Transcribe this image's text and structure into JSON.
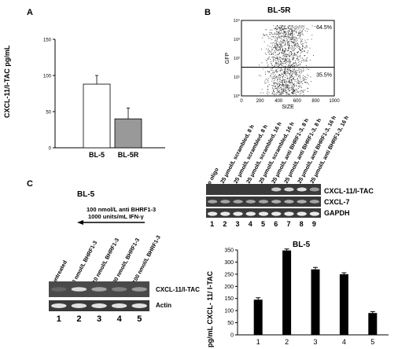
{
  "panels": {
    "A": {
      "letter": "A",
      "ylabel": "CXCL-11/I-TAC pg/mL",
      "chart_data": {
        "type": "bar",
        "categories": [
          "BL-5",
          "BL-5R"
        ],
        "values": [
          88,
          40
        ],
        "errors": [
          12,
          15
        ],
        "ylim": [
          0,
          150
        ],
        "yticks": [
          "0",
          "50",
          "100",
          "150"
        ],
        "colors": [
          "#ffffff",
          "#999999"
        ]
      }
    },
    "B": {
      "letter": "B",
      "title": "BL-5R",
      "chart_data": {
        "type": "scatter",
        "xlabel": "SIZE",
        "ylabel": "GFP",
        "xticks": [
          "0",
          "200",
          "400",
          "600",
          "800",
          "1000"
        ],
        "yticks": [
          "10⁰",
          "10¹",
          "10²",
          "10³",
          "10⁴"
        ],
        "gate_upper": "64.5%",
        "gate_lower": "35.5%"
      },
      "lane_labels": [
        "no oligo",
        "0.25 μmol/L scrambled, 8 h",
        "1.25 μmol/L scrambled, 8 h",
        "0.25 μmol/L scrambled, 16 h",
        "1.25 μmol/L scrambled, 16 h",
        "0.25 μmol/L anti BHRF1-3, 8 h",
        "1.25 μmol/L anti BHRF1-3, 8 h",
        "0.25 μmol/L anti BHRF1-3, 16 h",
        "1.25 μmol/L anti BHRF1-3, 16 h"
      ],
      "bands": [
        "CXCL-11/I-TAC",
        "CXCL-7",
        "GAPDH"
      ],
      "lane_numbers": [
        "1",
        "2",
        "3",
        "4",
        "5",
        "6",
        "7",
        "8",
        "9"
      ]
    },
    "C": {
      "letter": "C",
      "title": "BL-5",
      "treatment_line1": "100  nmol/L anti BHRF1-3",
      "treatment_line2": "1000  units/mL  IFN-γ",
      "lane_labels": [
        "untreated",
        "0 nmol/L BHRF1-3",
        "10 nmol/L BHRF1-3",
        "30 nmol/L BHRF1-3",
        "100 nmol/L BHRF1-3"
      ],
      "bands": [
        "CXCL-11/I-TAC",
        "Actin"
      ],
      "lane_numbers": [
        "1",
        "2",
        "3",
        "4",
        "5"
      ]
    },
    "D": {
      "title": "BL-5",
      "ylabel": "pg/mL CXCL- 11/ I-TAC",
      "chart_data": {
        "type": "bar",
        "categories": [
          "1",
          "2",
          "3",
          "4",
          "5"
        ],
        "values": [
          145,
          348,
          270,
          250,
          90
        ],
        "errors": [
          8,
          6,
          8,
          6,
          6
        ],
        "ylim": [
          0,
          350
        ],
        "yticks": [
          "0",
          "50",
          "100",
          "150",
          "200",
          "250",
          "300",
          "350"
        ],
        "color": "#000000"
      }
    }
  }
}
